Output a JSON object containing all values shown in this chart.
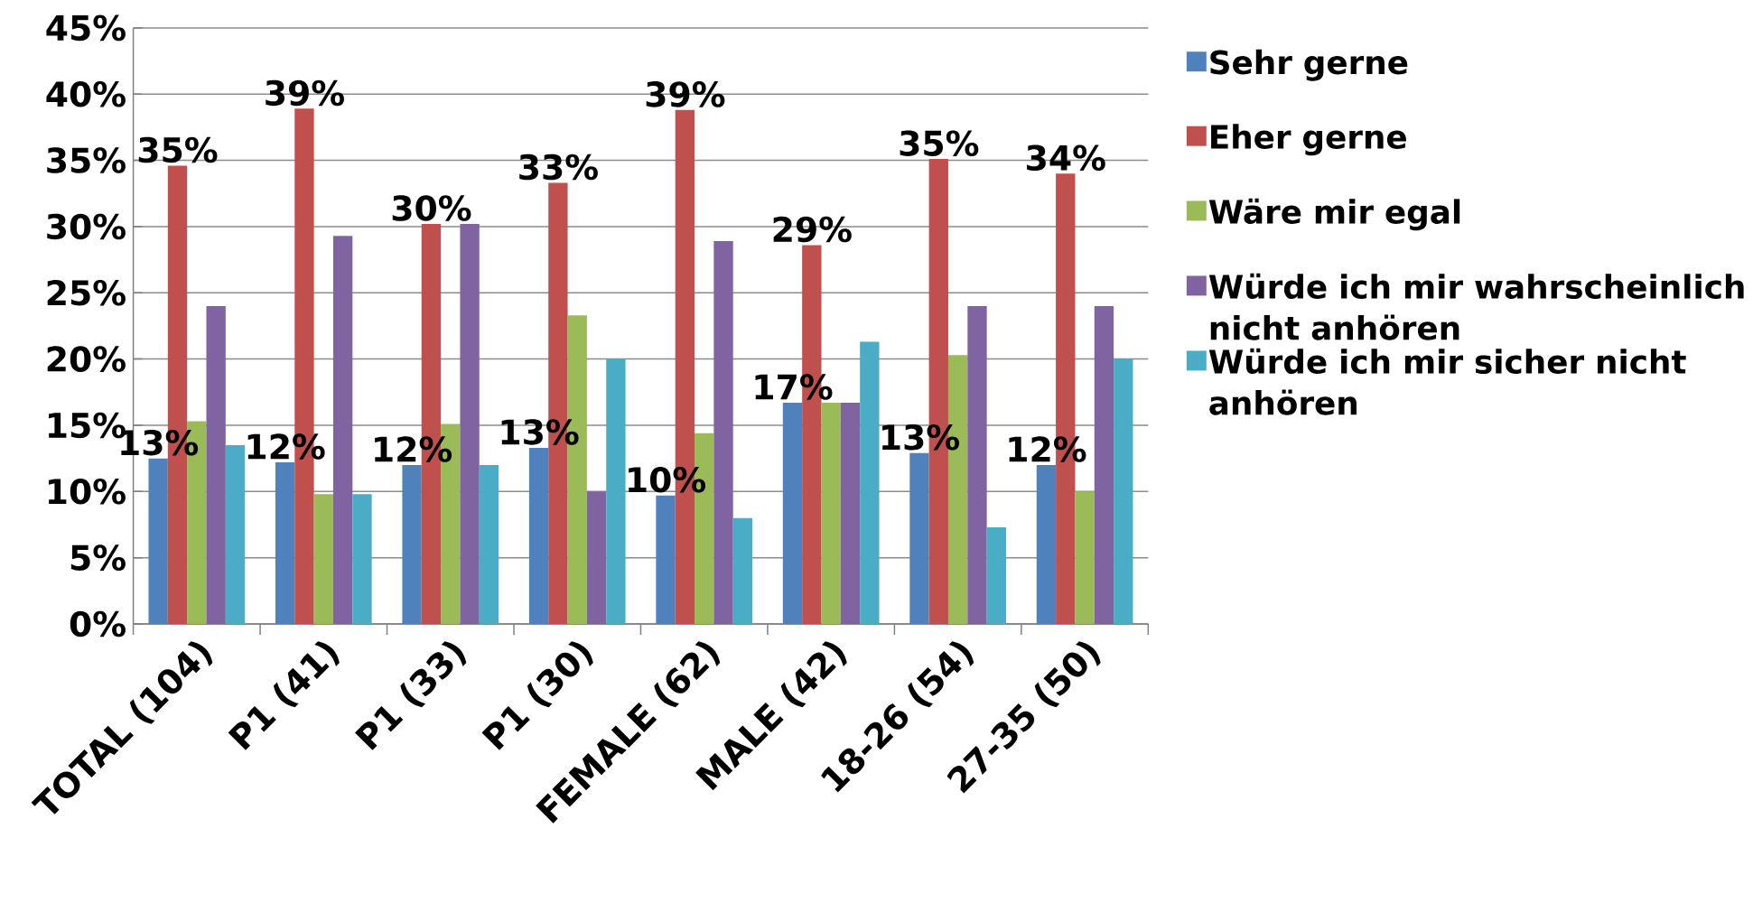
{
  "chart_data": {
    "type": "bar",
    "categories": [
      "TOTAL (104)",
      "P1 (41)",
      "P1 (33)",
      "P1 (30)",
      "FEMALE (62)",
      "MALE (42)",
      "18-26 (54)",
      "27-35 (50)"
    ],
    "series": [
      {
        "name": "Sehr gerne",
        "color": "#4f81bd",
        "values": [
          12.5,
          12.2,
          12.0,
          13.3,
          9.7,
          16.7,
          12.9,
          12.0
        ],
        "value_labels": [
          "13%",
          "12%",
          "12%",
          "13%",
          "10%",
          "17%",
          "13%",
          "12%"
        ]
      },
      {
        "name": "Eher gerne",
        "color": "#c0504d",
        "values": [
          34.6,
          38.9,
          30.2,
          33.3,
          38.8,
          28.6,
          35.1,
          34.0
        ],
        "value_labels": [
          "35%",
          "39%",
          "30%",
          "33%",
          "39%",
          "29%",
          "35%",
          "34%"
        ]
      },
      {
        "name": "Wäre mir egal",
        "color": "#9bbb59",
        "values": [
          15.3,
          9.8,
          15.1,
          23.3,
          14.4,
          16.7,
          20.3,
          10.0
        ]
      },
      {
        "name": "Würde ich mir wahrscheinlich nicht anhören",
        "color": "#8064a2",
        "values": [
          24.0,
          29.3,
          30.2,
          10.0,
          28.9,
          16.7,
          24.0,
          24.0
        ]
      },
      {
        "name": "Würde ich mir sicher nicht anhören",
        "color": "#4bacc6",
        "values": [
          13.5,
          9.8,
          12.0,
          20.0,
          8.0,
          21.3,
          7.3,
          20.0
        ]
      }
    ],
    "ylim": [
      0,
      45
    ],
    "yticks": [
      {
        "value": 0,
        "label": "0%"
      },
      {
        "value": 5,
        "label": "5%"
      },
      {
        "value": 10,
        "label": "10%"
      },
      {
        "value": 15,
        "label": "15%"
      },
      {
        "value": 20,
        "label": "20%"
      },
      {
        "value": 25,
        "label": "25%"
      },
      {
        "value": 30,
        "label": "30%"
      },
      {
        "value": 35,
        "label": "35%"
      },
      {
        "value": 40,
        "label": "40%"
      },
      {
        "value": 45,
        "label": "45%"
      }
    ],
    "grid": "y",
    "legend": "right"
  }
}
